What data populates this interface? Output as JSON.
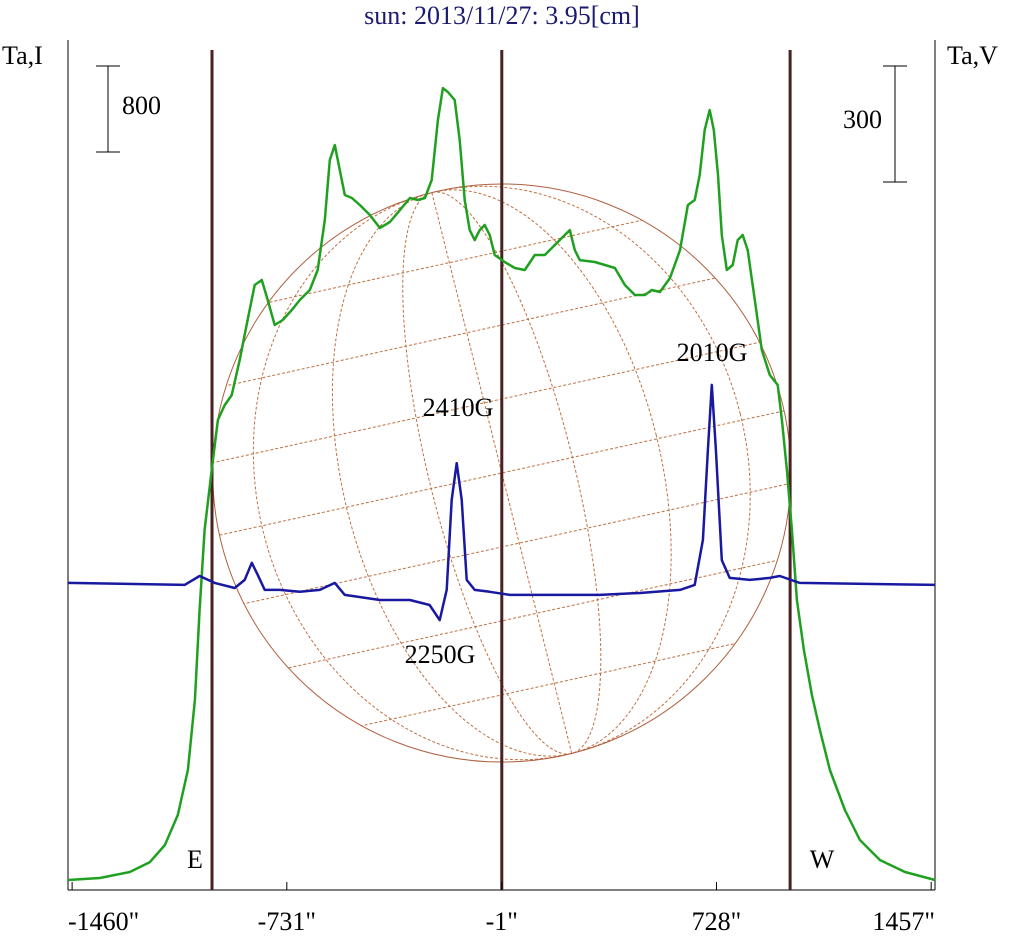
{
  "chart_data": {
    "type": "line",
    "title": "sun: 2013/11/27: 3.95[cm]",
    "ylabel": "Ta,I",
    "y2label": "Ta,V",
    "xlim": [
      -1474,
      1470
    ],
    "xticks": [
      {
        "value": -1460,
        "label": "-1460\""
      },
      {
        "value": -731,
        "label": "-731\""
      },
      {
        "value": -1,
        "label": "-1\""
      },
      {
        "value": 728,
        "label": "728\""
      },
      {
        "value": 1457,
        "label": "1457\""
      }
    ],
    "ylim": [
      -93,
      7814
    ],
    "y2lim": [
      -794,
      1404
    ],
    "iscale": 800,
    "vscale": 300,
    "vlines": [
      -985,
      -1,
      978
    ],
    "annotations": [
      "2410G",
      "2010G",
      "2250G",
      "E",
      "W"
    ],
    "series": [
      {
        "name": "I",
        "color": "#20a020",
        "x": [
          -1474,
          -1366,
          -1264,
          -1196,
          -1145,
          -1101,
          -1067,
          -1043,
          -1027,
          -1010,
          -986,
          -965,
          -942,
          -918,
          -891,
          -864,
          -840,
          -816,
          -796,
          -772,
          -745,
          -714,
          -687,
          -653,
          -626,
          -602,
          -585,
          -568,
          -551,
          -534,
          -510,
          -483,
          -449,
          -415,
          -381,
          -347,
          -313,
          -286,
          -262,
          -239,
          -218,
          -201,
          -184,
          -161,
          -144,
          -127,
          -110,
          -93,
          -76,
          -59,
          -42,
          -25,
          9,
          43,
          77,
          111,
          145,
          179,
          213,
          230,
          247,
          264,
          315,
          349,
          383,
          417,
          451,
          485,
          508,
          536,
          570,
          604,
          631,
          654,
          671,
          688,
          705,
          719,
          733,
          746,
          763,
          783,
          800,
          817,
          834,
          858,
          882,
          909,
          936,
          950,
          967,
          984,
          1001,
          1025,
          1052,
          1079,
          1113,
          1164,
          1215,
          1283,
          1368,
          1470
        ],
        "values": [
          0,
          19,
          74,
          167,
          326,
          605,
          1023,
          1674,
          2512,
          3256,
          3814,
          4279,
          4418,
          4511,
          4837,
          5209,
          5535,
          5581,
          5395,
          5163,
          5209,
          5302,
          5395,
          5488,
          5674,
          6139,
          6697,
          6837,
          6604,
          6372,
          6344,
          6279,
          6186,
          6065,
          6121,
          6232,
          6344,
          6326,
          6344,
          6511,
          7070,
          7367,
          7330,
          7256,
          6883,
          6326,
          6046,
          5953,
          6046,
          6093,
          6000,
          5814,
          5749,
          5693,
          5674,
          5814,
          5814,
          5907,
          6000,
          6046,
          5860,
          5767,
          5749,
          5721,
          5693,
          5535,
          5442,
          5442,
          5488,
          5470,
          5600,
          5860,
          6279,
          6326,
          6558,
          6977,
          7163,
          6977,
          6558,
          6000,
          5674,
          5721,
          5953,
          6000,
          5860,
          5395,
          4930,
          4698,
          4605,
          4279,
          3814,
          3256,
          2605,
          2140,
          1721,
          1395,
          1023,
          651,
          372,
          186,
          74,
          0
        ]
      },
      {
        "name": "V",
        "color": "#1818a0",
        "axis": "y2",
        "x": [
          -1474,
          -1078,
          -1027,
          -976,
          -908,
          -874,
          -850,
          -830,
          -806,
          -755,
          -687,
          -619,
          -568,
          -534,
          -415,
          -313,
          -246,
          -212,
          -188,
          -171,
          -154,
          -137,
          -120,
          -93,
          -42,
          26,
          196,
          332,
          468,
          604,
          654,
          682,
          699,
          712,
          726,
          746,
          773,
          841,
          909,
          943,
          1011,
          1470
        ],
        "values": [
          0,
          -5,
          18,
          0,
          -13,
          8,
          52,
          21,
          -18,
          -18,
          -23,
          -18,
          0,
          -31,
          -44,
          -44,
          -57,
          -96,
          -18,
          215,
          310,
          215,
          8,
          -18,
          -23,
          -31,
          -31,
          -31,
          -26,
          -18,
          -5,
          111,
          344,
          512,
          344,
          59,
          13,
          8,
          13,
          18,
          0,
          -5
        ]
      }
    ]
  }
}
